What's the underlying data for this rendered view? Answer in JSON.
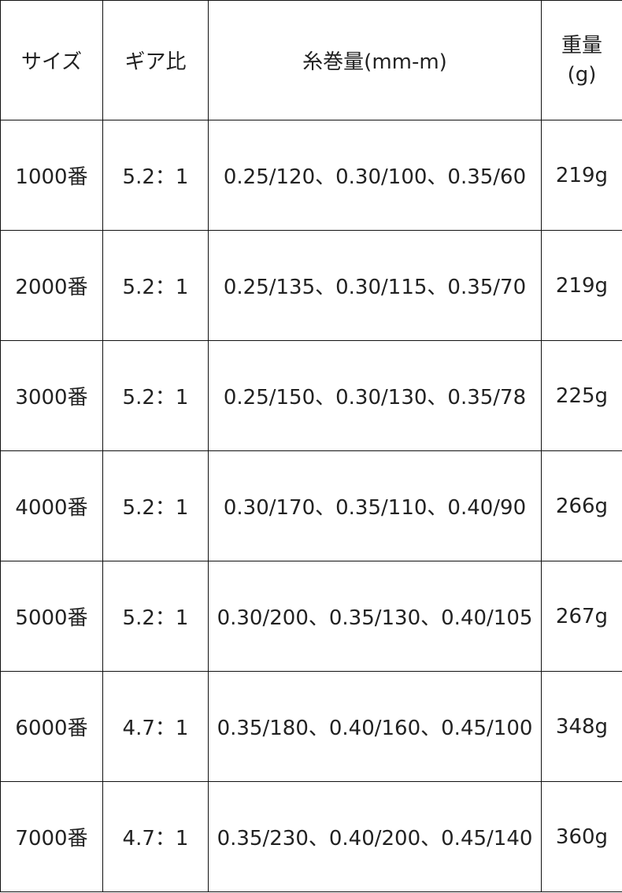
{
  "table": {
    "header": [
      "サイズ",
      "ギア比",
      "糸巻量(mm-m)",
      "重量(g)"
    ],
    "rows": [
      [
        "1000番",
        "5.2：1",
        "0.25/120、0.30/100、0.35/60",
        "219g"
      ],
      [
        "2000番",
        "5.2：1",
        "0.25/135、0.30/115、0.35/70",
        "219g"
      ],
      [
        "3000番",
        "5.2：1",
        "0.25/150、0.30/130、0.35/78",
        "225g"
      ],
      [
        "4000番",
        "5.2：1",
        "0.30/170、0.35/110、0.40/90",
        "266g"
      ],
      [
        "5000番",
        "5.2：1",
        "0.30/200、0.35/130、0.40/105",
        "267g"
      ],
      [
        "6000番",
        "4.7：1",
        "0.35/180、0.40/160、0.45/100",
        "348g"
      ],
      [
        "7000番",
        "4.7：1",
        "0.35/230、0.40/200、0.45/140",
        "360g"
      ]
    ]
  }
}
